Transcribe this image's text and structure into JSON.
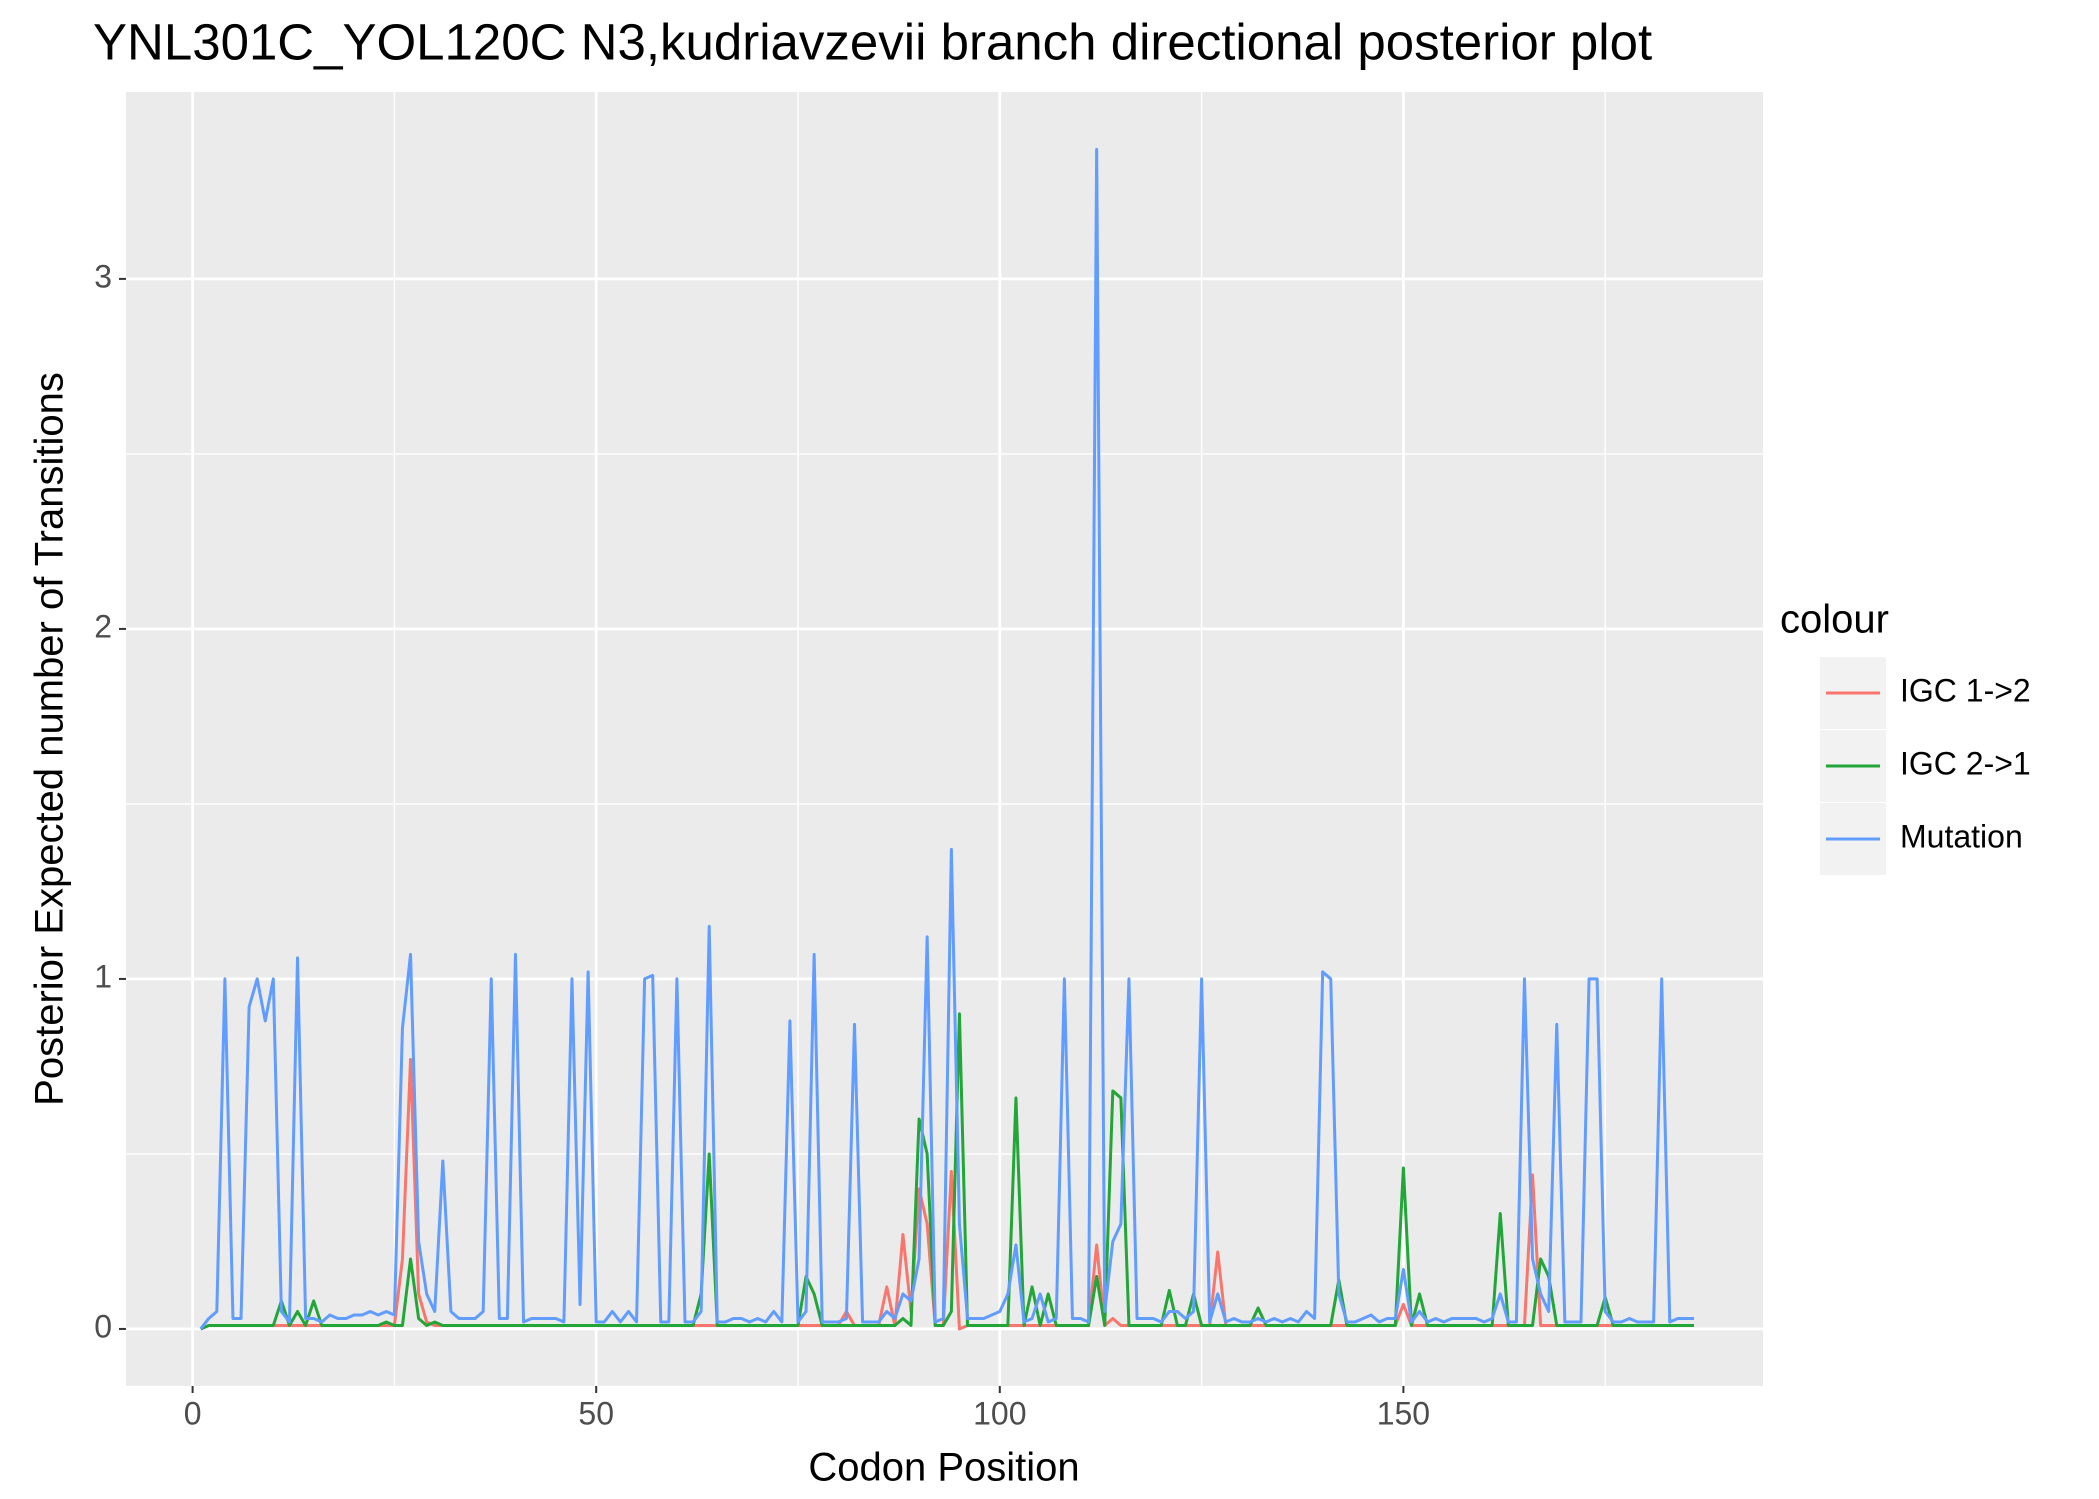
{
  "chart_data": {
    "type": "line",
    "title": "YNL301C_YOL120C N3,kudriavzevii branch directional posterior plot",
    "x_label": "Codon Position",
    "y_label": "Posterior Expected number of Transitions",
    "legend_title": "colour",
    "legend_position": "right",
    "grid": true,
    "xlim": [
      -8.25,
      194.55
    ],
    "xticks": [
      0,
      50,
      100,
      150
    ],
    "x_minor_grid": [
      25,
      75,
      125,
      175
    ],
    "ylim": [
      -0.163,
      3.534
    ],
    "yticks": [
      0,
      1,
      2,
      3
    ],
    "y_minor_grid": [
      0.5,
      1.5,
      2.5
    ],
    "x": [
      1,
      2,
      3,
      4,
      5,
      6,
      7,
      8,
      9,
      10,
      11,
      12,
      13,
      14,
      15,
      16,
      17,
      18,
      19,
      20,
      21,
      22,
      23,
      24,
      25,
      26,
      27,
      28,
      29,
      30,
      31,
      32,
      33,
      34,
      35,
      36,
      37,
      38,
      39,
      40,
      41,
      42,
      43,
      44,
      45,
      46,
      47,
      48,
      49,
      50,
      51,
      52,
      53,
      54,
      55,
      56,
      57,
      58,
      59,
      60,
      61,
      62,
      63,
      64,
      65,
      66,
      67,
      68,
      69,
      70,
      71,
      72,
      73,
      74,
      75,
      76,
      77,
      78,
      79,
      80,
      81,
      82,
      83,
      84,
      85,
      86,
      87,
      88,
      89,
      90,
      91,
      92,
      93,
      94,
      95,
      96,
      97,
      98,
      99,
      100,
      101,
      102,
      103,
      104,
      105,
      106,
      107,
      108,
      109,
      110,
      111,
      112,
      113,
      114,
      115,
      116,
      117,
      118,
      119,
      120,
      121,
      122,
      123,
      124,
      125,
      126,
      127,
      128,
      129,
      130,
      131,
      132,
      133,
      134,
      135,
      136,
      137,
      138,
      139,
      140,
      141,
      142,
      143,
      144,
      145,
      146,
      147,
      148,
      149,
      150,
      151,
      152,
      153,
      154,
      155,
      156,
      157,
      158,
      159,
      160,
      161,
      162,
      163,
      164,
      165,
      166,
      167,
      168,
      169,
      170,
      171,
      172,
      173,
      174,
      175,
      176,
      177,
      178,
      179,
      180,
      181,
      182,
      183,
      184,
      185,
      186
    ],
    "series": [
      {
        "name": "IGC 1->2",
        "color": "#F8766D",
        "values": [
          0,
          0.01,
          0.01,
          0.01,
          0.01,
          0.01,
          0.01,
          0.01,
          0.01,
          0.01,
          0.01,
          0.01,
          0.01,
          0.01,
          0.01,
          0.01,
          0.01,
          0.01,
          0.01,
          0.01,
          0.01,
          0.01,
          0.01,
          0.01,
          0.01,
          0.2,
          0.77,
          0.1,
          0.02,
          0.01,
          0.01,
          0.01,
          0.01,
          0.01,
          0.01,
          0.01,
          0.01,
          0.01,
          0.01,
          0.01,
          0.01,
          0.01,
          0.01,
          0.01,
          0.01,
          0.01,
          0.01,
          0.01,
          0.01,
          0.01,
          0.01,
          0.01,
          0.01,
          0.01,
          0.01,
          0.01,
          0.01,
          0.01,
          0.01,
          0.01,
          0.01,
          0.01,
          0.01,
          0.01,
          0.01,
          0.01,
          0.01,
          0.01,
          0.01,
          0.01,
          0.01,
          0.01,
          0.01,
          0.01,
          0.01,
          0.01,
          0.01,
          0.01,
          0.01,
          0.01,
          0.05,
          0.01,
          0.01,
          0.01,
          0.01,
          0.12,
          0.01,
          0.27,
          0.05,
          0.4,
          0.3,
          0.01,
          0.01,
          0.45,
          0,
          0.01,
          0.01,
          0.01,
          0.01,
          0.01,
          0.01,
          0.01,
          0.01,
          0.01,
          0.01,
          0.01,
          0.01,
          0.01,
          0.01,
          0.01,
          0.01,
          0.24,
          0.01,
          0.03,
          0.01,
          0.01,
          0.01,
          0.01,
          0.01,
          0.01,
          0.01,
          0.01,
          0.01,
          0.01,
          0.01,
          0.01,
          0.22,
          0.01,
          0.01,
          0.01,
          0.01,
          0.01,
          0.01,
          0.01,
          0.01,
          0.01,
          0.01,
          0.01,
          0.01,
          0.01,
          0.01,
          0.01,
          0.01,
          0.01,
          0.01,
          0.01,
          0.01,
          0.01,
          0.01,
          0.07,
          0.01,
          0.01,
          0.01,
          0.01,
          0.01,
          0.01,
          0.01,
          0.01,
          0.01,
          0.01,
          0.01,
          0.01,
          0.01,
          0.01,
          0.01,
          0.44,
          0.01,
          0.01,
          0.01,
          0.01,
          0.01,
          0.01,
          0.01,
          0.01,
          0.01,
          0.01,
          0.01,
          0.01,
          0.01,
          0.01,
          0.01,
          0.01,
          0.01,
          0.01,
          0.01,
          0.01
        ]
      },
      {
        "name": "IGC 2->1",
        "color": "#22A638",
        "values": [
          0,
          0.01,
          0.01,
          0.01,
          0.01,
          0.01,
          0.01,
          0.01,
          0.01,
          0.01,
          0.08,
          0.01,
          0.05,
          0.01,
          0.08,
          0.01,
          0.01,
          0.01,
          0.01,
          0.01,
          0.01,
          0.01,
          0.01,
          0.02,
          0.01,
          0.01,
          0.2,
          0.03,
          0.01,
          0.02,
          0.01,
          0.01,
          0.01,
          0.01,
          0.01,
          0.01,
          0.01,
          0.01,
          0.01,
          0.01,
          0.01,
          0.01,
          0.01,
          0.01,
          0.01,
          0.01,
          0.01,
          0.01,
          0.01,
          0.01,
          0.01,
          0.01,
          0.01,
          0.01,
          0.01,
          0.01,
          0.01,
          0.01,
          0.01,
          0.01,
          0.01,
          0.01,
          0.1,
          0.5,
          0.01,
          0.01,
          0.01,
          0.01,
          0.01,
          0.01,
          0.01,
          0.01,
          0.01,
          0.01,
          0.01,
          0.15,
          0.1,
          0.01,
          0.01,
          0.01,
          0.01,
          0.01,
          0.01,
          0.01,
          0.01,
          0.01,
          0.01,
          0.03,
          0.01,
          0.6,
          0.5,
          0.01,
          0.01,
          0.05,
          0.9,
          0.01,
          0.01,
          0.01,
          0.01,
          0.01,
          0.01,
          0.66,
          0.01,
          0.12,
          0.01,
          0.1,
          0.01,
          0.01,
          0.01,
          0.01,
          0.01,
          0.15,
          0.01,
          0.68,
          0.66,
          0.01,
          0.01,
          0.01,
          0.01,
          0.01,
          0.11,
          0.01,
          0.01,
          0.1,
          0.01,
          0.01,
          0.01,
          0.01,
          0.01,
          0.01,
          0.01,
          0.06,
          0.01,
          0.01,
          0.01,
          0.01,
          0.01,
          0.01,
          0.01,
          0.01,
          0.01,
          0.14,
          0.01,
          0.01,
          0.01,
          0.01,
          0.01,
          0.01,
          0.01,
          0.46,
          0.01,
          0.1,
          0.01,
          0.01,
          0.01,
          0.01,
          0.01,
          0.01,
          0.01,
          0.01,
          0.01,
          0.33,
          0.01,
          0.01,
          0.01,
          0.01,
          0.2,
          0.15,
          0.01,
          0.01,
          0.01,
          0.01,
          0.01,
          0.01,
          0.09,
          0.01,
          0.01,
          0.01,
          0.01,
          0.01,
          0.01,
          0.01,
          0.01,
          0.01,
          0.01,
          0.01
        ]
      },
      {
        "name": "Mutation",
        "color": "#619CFF",
        "values": [
          0,
          0.03,
          0.05,
          1.0,
          0.03,
          0.03,
          0.92,
          1.0,
          0.88,
          1.0,
          0.05,
          0.02,
          1.06,
          0.03,
          0.03,
          0.02,
          0.04,
          0.03,
          0.03,
          0.04,
          0.04,
          0.05,
          0.04,
          0.05,
          0.04,
          0.86,
          1.07,
          0.25,
          0.1,
          0.05,
          0.48,
          0.05,
          0.03,
          0.03,
          0.03,
          0.05,
          1.0,
          0.03,
          0.03,
          1.07,
          0.02,
          0.03,
          0.03,
          0.03,
          0.03,
          0.02,
          1.0,
          0.07,
          1.02,
          0.02,
          0.02,
          0.05,
          0.02,
          0.05,
          0.02,
          1.0,
          1.01,
          0.02,
          0.02,
          1.0,
          0.02,
          0.02,
          0.05,
          1.15,
          0.02,
          0.02,
          0.03,
          0.03,
          0.02,
          0.03,
          0.02,
          0.05,
          0.02,
          0.88,
          0.02,
          0.05,
          1.07,
          0.02,
          0.02,
          0.02,
          0.03,
          0.87,
          0.02,
          0.02,
          0.02,
          0.05,
          0.03,
          0.1,
          0.08,
          0.2,
          1.12,
          0.02,
          0.03,
          1.37,
          0.3,
          0.03,
          0.03,
          0.03,
          0.04,
          0.05,
          0.1,
          0.24,
          0.02,
          0.03,
          0.1,
          0.02,
          0.03,
          1.0,
          0.03,
          0.03,
          0.02,
          3.37,
          0.05,
          0.25,
          0.3,
          1.0,
          0.03,
          0.03,
          0.03,
          0.02,
          0.05,
          0.05,
          0.03,
          0.05,
          1.0,
          0.02,
          0.1,
          0.02,
          0.03,
          0.02,
          0.02,
          0.03,
          0.02,
          0.03,
          0.02,
          0.03,
          0.02,
          0.05,
          0.03,
          1.02,
          1.0,
          0.1,
          0.02,
          0.02,
          0.03,
          0.04,
          0.02,
          0.03,
          0.03,
          0.17,
          0.02,
          0.05,
          0.02,
          0.03,
          0.02,
          0.03,
          0.03,
          0.03,
          0.03,
          0.02,
          0.03,
          0.1,
          0.02,
          0.02,
          1.0,
          0.2,
          0.1,
          0.05,
          0.87,
          0.02,
          0.02,
          0.02,
          1.0,
          1.0,
          0.05,
          0.02,
          0.02,
          0.03,
          0.02,
          0.02,
          0.02,
          1.0,
          0.02,
          0.03,
          0.03,
          0.03
        ]
      }
    ]
  }
}
